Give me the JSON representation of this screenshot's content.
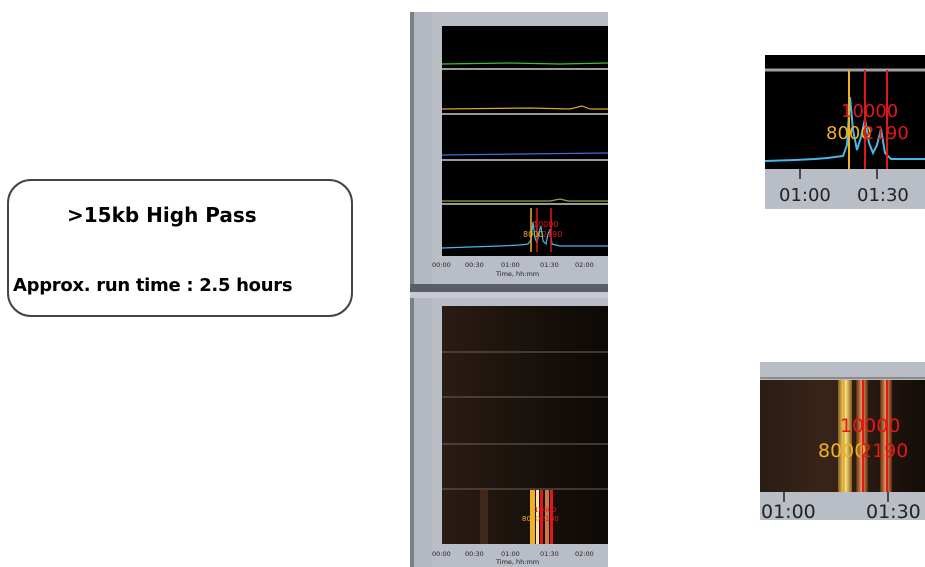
{
  "info": {
    "title": ">15kb High Pass",
    "runtime_label": "Approx. run time",
    "runtime_value": ": 2.5 hours"
  },
  "electropherogram": {
    "x_ticks": [
      "00:00",
      "00:30",
      "01:00",
      "01:30",
      "02:00"
    ],
    "x_label": "Time, hh:mm"
  },
  "gel": {
    "x_ticks": [
      "00:00",
      "00:30",
      "01:00",
      "01:30",
      "02:00"
    ],
    "x_label": "Time, hh:mm"
  },
  "markers": {
    "yellow_label": "8000",
    "red_label_1": "10000",
    "red_label_2": "2190",
    "yellow_label_zoom": "8000",
    "red_label_2_zoom": "2190",
    "yellow_color": "#f0b020",
    "red_color": "#e01818"
  },
  "zoom_ticks": [
    "01:00",
    "01:30"
  ],
  "trace_colors": [
    "#35c53a",
    "#d9a52a",
    "#3a6fd8",
    "#9aa83a",
    "#48b8e8"
  ]
}
